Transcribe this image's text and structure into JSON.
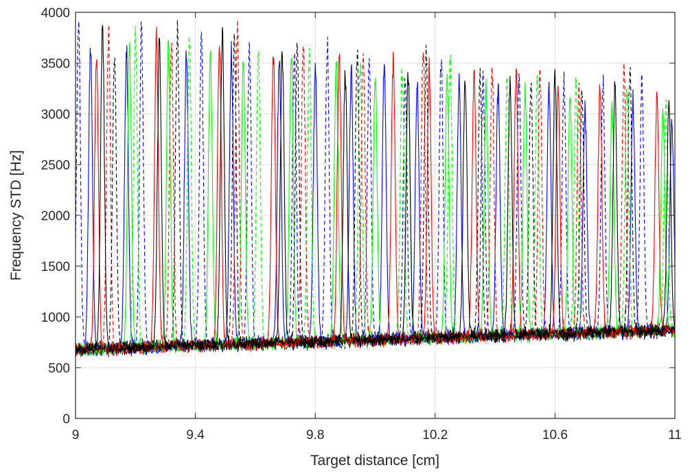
{
  "chart_data": {
    "type": "line",
    "title": "",
    "xlabel": "Target distance [cm]",
    "ylabel": "Frequency STD [Hz]",
    "xlim": [
      9,
      11
    ],
    "ylim": [
      0,
      4000
    ],
    "xticks": [
      9,
      9.4,
      9.8,
      10.2,
      10.6,
      11
    ],
    "xtick_labels": [
      "9",
      "9.4",
      "9.8",
      "10.2",
      "10.6",
      "11"
    ],
    "yticks": [
      0,
      500,
      1000,
      1500,
      2000,
      2500,
      3000,
      3500,
      4000
    ],
    "ytick_labels": [
      "0",
      "500",
      "1000",
      "1500",
      "2000",
      "2500",
      "3000",
      "3500",
      "4000"
    ],
    "grid": true,
    "legend": "none",
    "baseline": {
      "start": [
        9,
        680
      ],
      "end": [
        11,
        870
      ],
      "noise_amplitude": 60
    },
    "series": [
      {
        "color": "#0000ff",
        "style": "solid",
        "peaks": [
          [
            9.05,
            3650
          ],
          [
            9.17,
            3600
          ],
          [
            9.37,
            3580
          ],
          [
            9.52,
            3620
          ],
          [
            9.68,
            3550
          ],
          [
            9.8,
            3480
          ],
          [
            9.92,
            3440
          ],
          [
            10.03,
            3470
          ],
          [
            10.14,
            3300
          ],
          [
            10.28,
            3320
          ],
          [
            10.41,
            3260
          ],
          [
            10.58,
            3230
          ],
          [
            10.7,
            3080
          ],
          [
            10.86,
            3140
          ],
          [
            10.99,
            2950
          ]
        ]
      },
      {
        "color": "#0000ff",
        "style": "dashed",
        "peaks": [
          [
            9.01,
            3900
          ],
          [
            9.22,
            3840
          ],
          [
            9.42,
            3720
          ],
          [
            9.58,
            3640
          ],
          [
            9.73,
            3600
          ],
          [
            9.84,
            3660
          ],
          [
            9.98,
            3560
          ],
          [
            10.1,
            3340
          ],
          [
            10.22,
            3540
          ],
          [
            10.36,
            3400
          ],
          [
            10.48,
            3360
          ],
          [
            10.63,
            3300
          ],
          [
            10.76,
            3340
          ],
          [
            10.89,
            3320
          ]
        ]
      },
      {
        "color": "#00ff00",
        "style": "solid",
        "peaks": [
          [
            9.18,
            3690
          ],
          [
            9.31,
            3650
          ],
          [
            9.45,
            3570
          ],
          [
            9.56,
            3500
          ],
          [
            9.72,
            3600
          ],
          [
            9.87,
            3520
          ],
          [
            10.0,
            3400
          ],
          [
            10.11,
            3340
          ],
          [
            10.24,
            3390
          ],
          [
            10.37,
            3230
          ],
          [
            10.5,
            3260
          ],
          [
            10.65,
            3190
          ],
          [
            10.79,
            3090
          ],
          [
            10.96,
            3050
          ]
        ]
      },
      {
        "color": "#00ff00",
        "style": "dashed",
        "peaks": [
          [
            9.2,
            3770
          ],
          [
            9.38,
            3720
          ],
          [
            9.61,
            3650
          ],
          [
            9.78,
            3570
          ],
          [
            9.95,
            3500
          ],
          [
            10.09,
            3460
          ],
          [
            10.25,
            3600
          ],
          [
            10.44,
            3380
          ],
          [
            10.54,
            3320
          ],
          [
            10.67,
            3270
          ],
          [
            10.84,
            3240
          ],
          [
            10.97,
            3060
          ]
        ]
      },
      {
        "color": "#ff0000",
        "style": "solid",
        "peaks": [
          [
            9.07,
            3560
          ],
          [
            9.27,
            3740
          ],
          [
            9.48,
            3680
          ],
          [
            9.66,
            3600
          ],
          [
            9.88,
            3580
          ],
          [
            10.06,
            3520
          ],
          [
            10.18,
            3440
          ],
          [
            10.33,
            3420
          ],
          [
            10.47,
            3390
          ],
          [
            10.61,
            3270
          ],
          [
            10.75,
            3290
          ],
          [
            10.94,
            3160
          ]
        ]
      },
      {
        "color": "#ff0000",
        "style": "dashed",
        "peaks": [
          [
            9.11,
            3780
          ],
          [
            9.32,
            3760
          ],
          [
            9.54,
            3840
          ],
          [
            9.76,
            3720
          ],
          [
            9.96,
            3670
          ],
          [
            10.16,
            3650
          ],
          [
            10.39,
            3410
          ],
          [
            10.55,
            3370
          ],
          [
            10.68,
            3250
          ],
          [
            10.83,
            3440
          ]
        ]
      },
      {
        "color": "#000000",
        "style": "solid",
        "peaks": [
          [
            9.09,
            3830
          ],
          [
            9.28,
            3700
          ],
          [
            9.49,
            3790
          ],
          [
            9.69,
            3640
          ],
          [
            9.9,
            3450
          ],
          [
            10.11,
            3400
          ],
          [
            10.3,
            3350
          ],
          [
            10.45,
            3310
          ],
          [
            10.6,
            3380
          ],
          [
            10.8,
            3250
          ],
          [
            10.98,
            3110
          ]
        ]
      },
      {
        "color": "#000000",
        "style": "dashed",
        "peaks": [
          [
            9.13,
            3600
          ],
          [
            9.34,
            3850
          ],
          [
            9.53,
            3780
          ],
          [
            9.74,
            3690
          ],
          [
            9.94,
            3630
          ],
          [
            10.17,
            3630
          ],
          [
            10.35,
            3380
          ],
          [
            10.52,
            3320
          ],
          [
            10.69,
            3260
          ],
          [
            10.85,
            3460
          ]
        ]
      }
    ]
  }
}
